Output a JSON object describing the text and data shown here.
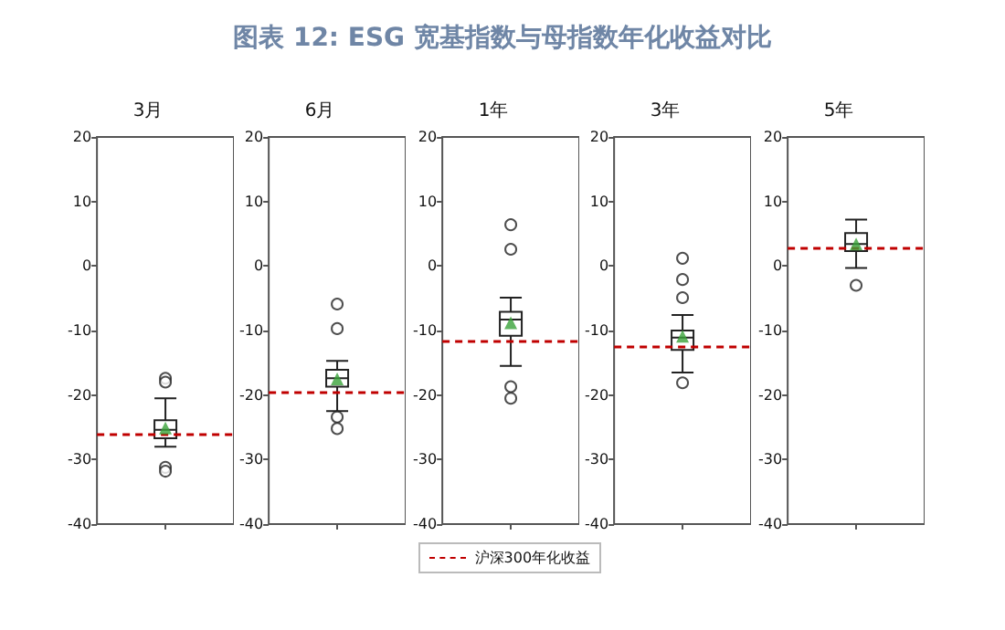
{
  "chart_data": [
    {
      "type": "other",
      "title": "图表 12: ESG 宽基指数与母指数年化收益对比"
    },
    {
      "type": "box",
      "title": "3月",
      "categories": [
        null
      ],
      "boxes": [
        {
          "low": -28,
          "q1": -26.7,
          "median": -25.4,
          "q3": -23.9,
          "high": -20.5,
          "mean": -25.1,
          "outliers": [
            -17.4,
            -18,
            -31.2,
            -31.8
          ]
        }
      ],
      "ylim": [
        -40,
        20
      ],
      "yticks": [
        -40,
        -30,
        -20,
        -10,
        0,
        10,
        20
      ],
      "ref_lines": [
        {
          "axis": "y",
          "value": -26,
          "color": "#c00000",
          "line_style": "dashed"
        }
      ]
    },
    {
      "type": "box",
      "title": "6月",
      "categories": [
        null
      ],
      "boxes": [
        {
          "low": -22.5,
          "q1": -18.7,
          "median": -17.4,
          "q3": -16.1,
          "high": -14.7,
          "mean": -17.5,
          "outliers": [
            -5.9,
            -9.7,
            -23.4,
            -25.2
          ]
        }
      ],
      "ylim": [
        -40,
        20
      ],
      "yticks": [
        -40,
        -30,
        -20,
        -10,
        0,
        10,
        20
      ],
      "ref_lines": [
        {
          "axis": "y",
          "value": -19.5,
          "color": "#c00000",
          "line_style": "dashed"
        }
      ]
    },
    {
      "type": "box",
      "title": "1年",
      "categories": [
        null
      ],
      "boxes": [
        {
          "low": -15.5,
          "q1": -10.8,
          "median": -8.3,
          "q3": -7.1,
          "high": -4.9,
          "mean": -8.8,
          "outliers": [
            6.4,
            2.6,
            -18.7,
            -20.5
          ]
        }
      ],
      "ylim": [
        -40,
        20
      ],
      "yticks": [
        -40,
        -30,
        -20,
        -10,
        0,
        10,
        20
      ],
      "ref_lines": [
        {
          "axis": "y",
          "value": -11.6,
          "color": "#c00000",
          "line_style": "dashed",
          "label": "沪深300年化收益"
        }
      ],
      "legend": "bottom"
    },
    {
      "type": "box",
      "title": "3年",
      "categories": [
        null
      ],
      "boxes": [
        {
          "low": -16.5,
          "q1": -13,
          "median": -11.1,
          "q3": -10,
          "high": -7.6,
          "mean": -10.9,
          "outliers": [
            1.2,
            -2.1,
            -4.9,
            -18.1
          ]
        }
      ],
      "ylim": [
        -40,
        20
      ],
      "yticks": [
        -40,
        -30,
        -20,
        -10,
        0,
        10,
        20
      ],
      "ref_lines": [
        {
          "axis": "y",
          "value": -12.5,
          "color": "#c00000",
          "line_style": "dashed"
        }
      ]
    },
    {
      "type": "box",
      "title": "5年",
      "categories": [
        null
      ],
      "boxes": [
        {
          "low": -0.3,
          "q1": 2.3,
          "median": 3.4,
          "q3": 5.1,
          "high": 7.2,
          "mean": 3.4,
          "outliers": [
            -3
          ]
        }
      ],
      "ylim": [
        -40,
        20
      ],
      "yticks": [
        -40,
        -30,
        -20,
        -10,
        0,
        10,
        20
      ],
      "ref_lines": [
        {
          "axis": "y",
          "value": 2.9,
          "color": "#c00000",
          "line_style": "dashed"
        }
      ]
    }
  ]
}
